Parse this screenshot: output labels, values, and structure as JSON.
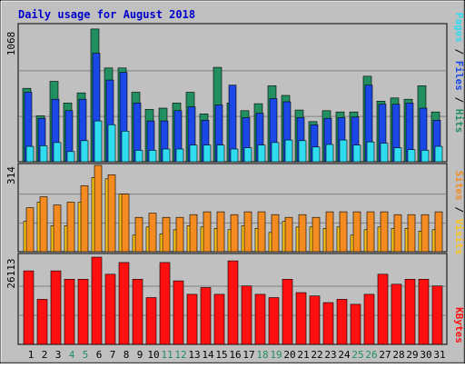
{
  "title": "Daily usage for August 2018",
  "colors": {
    "hits": "#218f5f",
    "files": "#1a47e6",
    "pages": "#30dcf0",
    "visits": "#ffc61a",
    "sites": "#f48b20",
    "kbytes": "#ff1010",
    "weekday_label": "#000000",
    "weekend_label": "#218f5f",
    "panel_bg": "#c0c0c0"
  },
  "legend": {
    "pages": "Pages",
    "files": "Files",
    "hits": "Hits",
    "sites": "Sites",
    "visits": "Visits",
    "kbytes": "KBytes",
    "separator": " / "
  },
  "chart_data": [
    {
      "type": "bar",
      "panel": "hits-files-pages",
      "ymax_label": "1068",
      "ylim": [
        0,
        1068
      ],
      "categories": [
        "1",
        "2",
        "3",
        "4",
        "5",
        "6",
        "7",
        "8",
        "9",
        "10",
        "11",
        "12",
        "13",
        "14",
        "15",
        "16",
        "17",
        "18",
        "19",
        "20",
        "21",
        "22",
        "23",
        "24",
        "25",
        "26",
        "27",
        "28",
        "29",
        "30",
        "31"
      ],
      "series": [
        {
          "name": "Hits",
          "values": [
            575,
            360,
            630,
            460,
            540,
            1040,
            735,
            735,
            545,
            410,
            420,
            460,
            545,
            375,
            740,
            460,
            400,
            455,
            595,
            520,
            405,
            315,
            400,
            390,
            390,
            670,
            475,
            500,
            490,
            595,
            390
          ]
        },
        {
          "name": "Files",
          "values": [
            545,
            340,
            490,
            400,
            490,
            850,
            640,
            700,
            460,
            320,
            320,
            400,
            430,
            325,
            445,
            600,
            345,
            380,
            495,
            470,
            345,
            290,
            340,
            345,
            350,
            600,
            450,
            450,
            460,
            420,
            325
          ]
        },
        {
          "name": "Pages",
          "values": [
            120,
            125,
            150,
            80,
            165,
            320,
            290,
            240,
            90,
            90,
            100,
            100,
            130,
            130,
            130,
            100,
            110,
            130,
            150,
            170,
            165,
            115,
            135,
            170,
            130,
            155,
            145,
            110,
            95,
            90,
            120
          ]
        }
      ]
    },
    {
      "type": "bar",
      "panel": "visits-sites",
      "ymax_label": "314",
      "ylim": [
        0,
        314
      ],
      "categories": [
        "1",
        "2",
        "3",
        "4",
        "5",
        "6",
        "7",
        "8",
        "9",
        "10",
        "11",
        "12",
        "13",
        "14",
        "15",
        "16",
        "17",
        "18",
        "19",
        "20",
        "21",
        "22",
        "23",
        "24",
        "25",
        "26",
        "27",
        "28",
        "29",
        "30",
        "31"
      ],
      "series": [
        {
          "name": "Visits",
          "values": [
            110,
            180,
            95,
            95,
            180,
            270,
            265,
            210,
            60,
            90,
            65,
            80,
            95,
            90,
            85,
            80,
            95,
            85,
            70,
            110,
            90,
            90,
            85,
            90,
            60,
            80,
            90,
            85,
            85,
            75,
            80
          ]
        },
        {
          "name": "Sites",
          "values": [
            160,
            200,
            170,
            180,
            240,
            314,
            280,
            210,
            125,
            140,
            125,
            125,
            135,
            145,
            145,
            135,
            145,
            145,
            135,
            125,
            135,
            125,
            145,
            145,
            145,
            145,
            145,
            135,
            135,
            135,
            145
          ]
        }
      ]
    },
    {
      "type": "bar",
      "panel": "kbytes",
      "ymax_label": "26113",
      "ylim": [
        0,
        26113
      ],
      "categories": [
        "1",
        "2",
        "3",
        "4",
        "5",
        "6",
        "7",
        "8",
        "9",
        "10",
        "11",
        "12",
        "13",
        "14",
        "15",
        "16",
        "17",
        "18",
        "19",
        "20",
        "21",
        "22",
        "23",
        "24",
        "25",
        "26",
        "27",
        "28",
        "29",
        "30",
        "31"
      ],
      "series": [
        {
          "name": "KBytes",
          "values": [
            22000,
            13500,
            22000,
            19500,
            19500,
            26113,
            21000,
            24500,
            19500,
            14000,
            24500,
            19000,
            15000,
            17000,
            15000,
            25000,
            17500,
            15000,
            14000,
            19500,
            15500,
            14500,
            12500,
            13500,
            12000,
            15000,
            21000,
            18000,
            19500,
            19500,
            17500
          ]
        }
      ]
    }
  ]
}
